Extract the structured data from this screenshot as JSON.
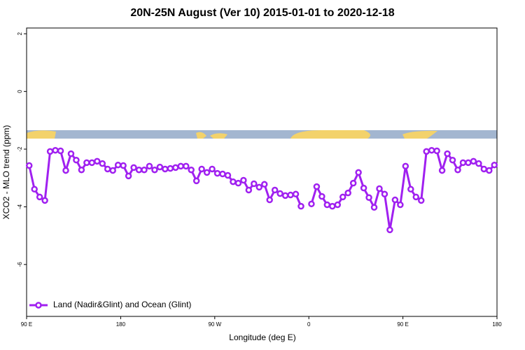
{
  "chart_data": {
    "type": "line",
    "title": "20N-25N August (Ver 10)   2015-01-01 to 2020-12-18",
    "x_label": "Longitude (deg E)",
    "y_label": "XCO2 - MLO trend (ppm)",
    "xlim": [
      90,
      540
    ],
    "ylim": [
      -7.8,
      2.2
    ],
    "xticks": [
      {
        "value": 90,
        "label": "90 E"
      },
      180,
      {
        "value": 270,
        "label": "90 W"
      },
      {
        "value": 360,
        "label": "0"
      },
      {
        "value": 450,
        "label": "90 E"
      },
      180
    ],
    "yticks": [
      -6,
      -4,
      -2,
      0,
      2
    ],
    "legend": "bottom-left",
    "x": [
      92.5,
      97.5,
      102.5,
      107.5,
      112.5,
      117.5,
      122.5,
      127.5,
      132.5,
      137.5,
      142.5,
      147.5,
      152.5,
      157.5,
      162.5,
      167.5,
      172.5,
      177.5,
      182.5,
      187.5,
      192.5,
      197.5,
      202.5,
      207.5,
      212.5,
      217.5,
      222.5,
      227.5,
      232.5,
      237.5,
      242.5,
      247.5,
      252.5,
      257.5,
      262.5,
      267.5,
      272.5,
      277.5,
      282.5,
      287.5,
      292.5,
      297.5,
      302.5,
      307.5,
      312.5,
      317.5,
      322.5,
      327.5,
      332.5,
      337.5,
      342.5,
      347.5,
      352.5,
      357.5,
      362.5,
      367.5,
      372.5,
      377.5,
      382.5,
      387.5,
      392.5,
      397.5,
      402.5,
      407.5,
      412.5,
      417.5,
      422.5,
      427.5,
      432.5,
      437.5,
      442.5,
      447.5,
      452.5,
      457.5,
      462.5,
      467.5,
      472.5,
      477.5,
      482.5,
      487.5,
      492.5,
      497.5,
      502.5,
      507.5,
      512.5,
      517.5,
      522.5,
      527.5,
      532.5,
      537.5
    ],
    "series": [
      {
        "name": "Land (Nadir&Glint) and Ocean (Glint)",
        "color": "#a020f0",
        "values": [
          -2.57,
          -3.39,
          -3.66,
          -3.78,
          -2.08,
          -2.04,
          -2.06,
          -2.74,
          -2.16,
          -2.38,
          -2.72,
          -2.47,
          -2.47,
          -2.42,
          -2.5,
          -2.69,
          -2.74,
          -2.55,
          -2.57,
          -2.93,
          -2.64,
          -2.72,
          -2.72,
          -2.59,
          -2.72,
          -2.62,
          -2.69,
          -2.67,
          -2.64,
          -2.59,
          -2.59,
          -2.72,
          -3.1,
          -2.69,
          -2.81,
          -2.69,
          -2.84,
          -2.86,
          -2.91,
          -3.13,
          -3.18,
          -3.08,
          -3.42,
          -3.2,
          -3.32,
          -3.22,
          -3.76,
          -3.42,
          -3.54,
          -3.61,
          -3.59,
          -3.56,
          -3.98,
          null,
          -3.9,
          -3.3,
          -3.64,
          -3.93,
          -3.98,
          -3.93,
          -3.66,
          -3.52,
          -3.18,
          -2.81,
          -3.35,
          -3.68,
          -4.02,
          -3.37,
          -3.56,
          -4.8,
          -3.76,
          -3.93,
          -2.59,
          -3.39,
          -3.66,
          -3.78,
          -2.08,
          -2.04,
          -2.06,
          -2.74,
          -2.16,
          -2.38,
          -2.72,
          -2.47,
          -2.47,
          -2.42,
          -2.5,
          -2.69,
          -2.74,
          -2.55
        ]
      }
    ]
  }
}
